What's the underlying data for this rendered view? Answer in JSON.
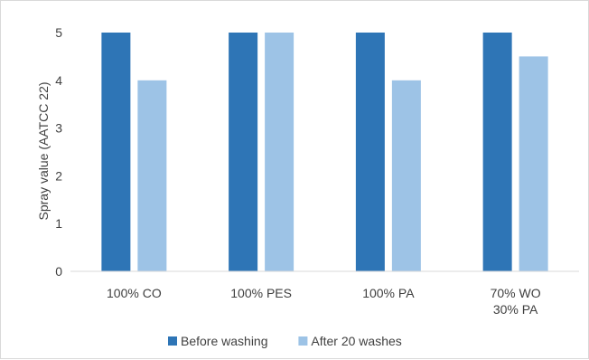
{
  "chart_data": {
    "type": "bar",
    "categories": [
      [
        "100% CO"
      ],
      [
        "100% PES"
      ],
      [
        "100% PA"
      ],
      [
        "70% WO",
        "30% PA"
      ]
    ],
    "series": [
      {
        "name": "Before washing",
        "values": [
          5,
          5,
          5,
          5
        ],
        "color": "#2e75b6"
      },
      {
        "name": "After 20 washes",
        "values": [
          4,
          5,
          4,
          4.5
        ],
        "color": "#9dc3e6"
      }
    ],
    "title": "",
    "xlabel": "",
    "ylabel": "Spray value (AATCC 22)",
    "ylim": [
      0,
      5
    ],
    "yticks": [
      0,
      1,
      2,
      3,
      4,
      5
    ],
    "grid": false,
    "legend_position": "bottom"
  }
}
